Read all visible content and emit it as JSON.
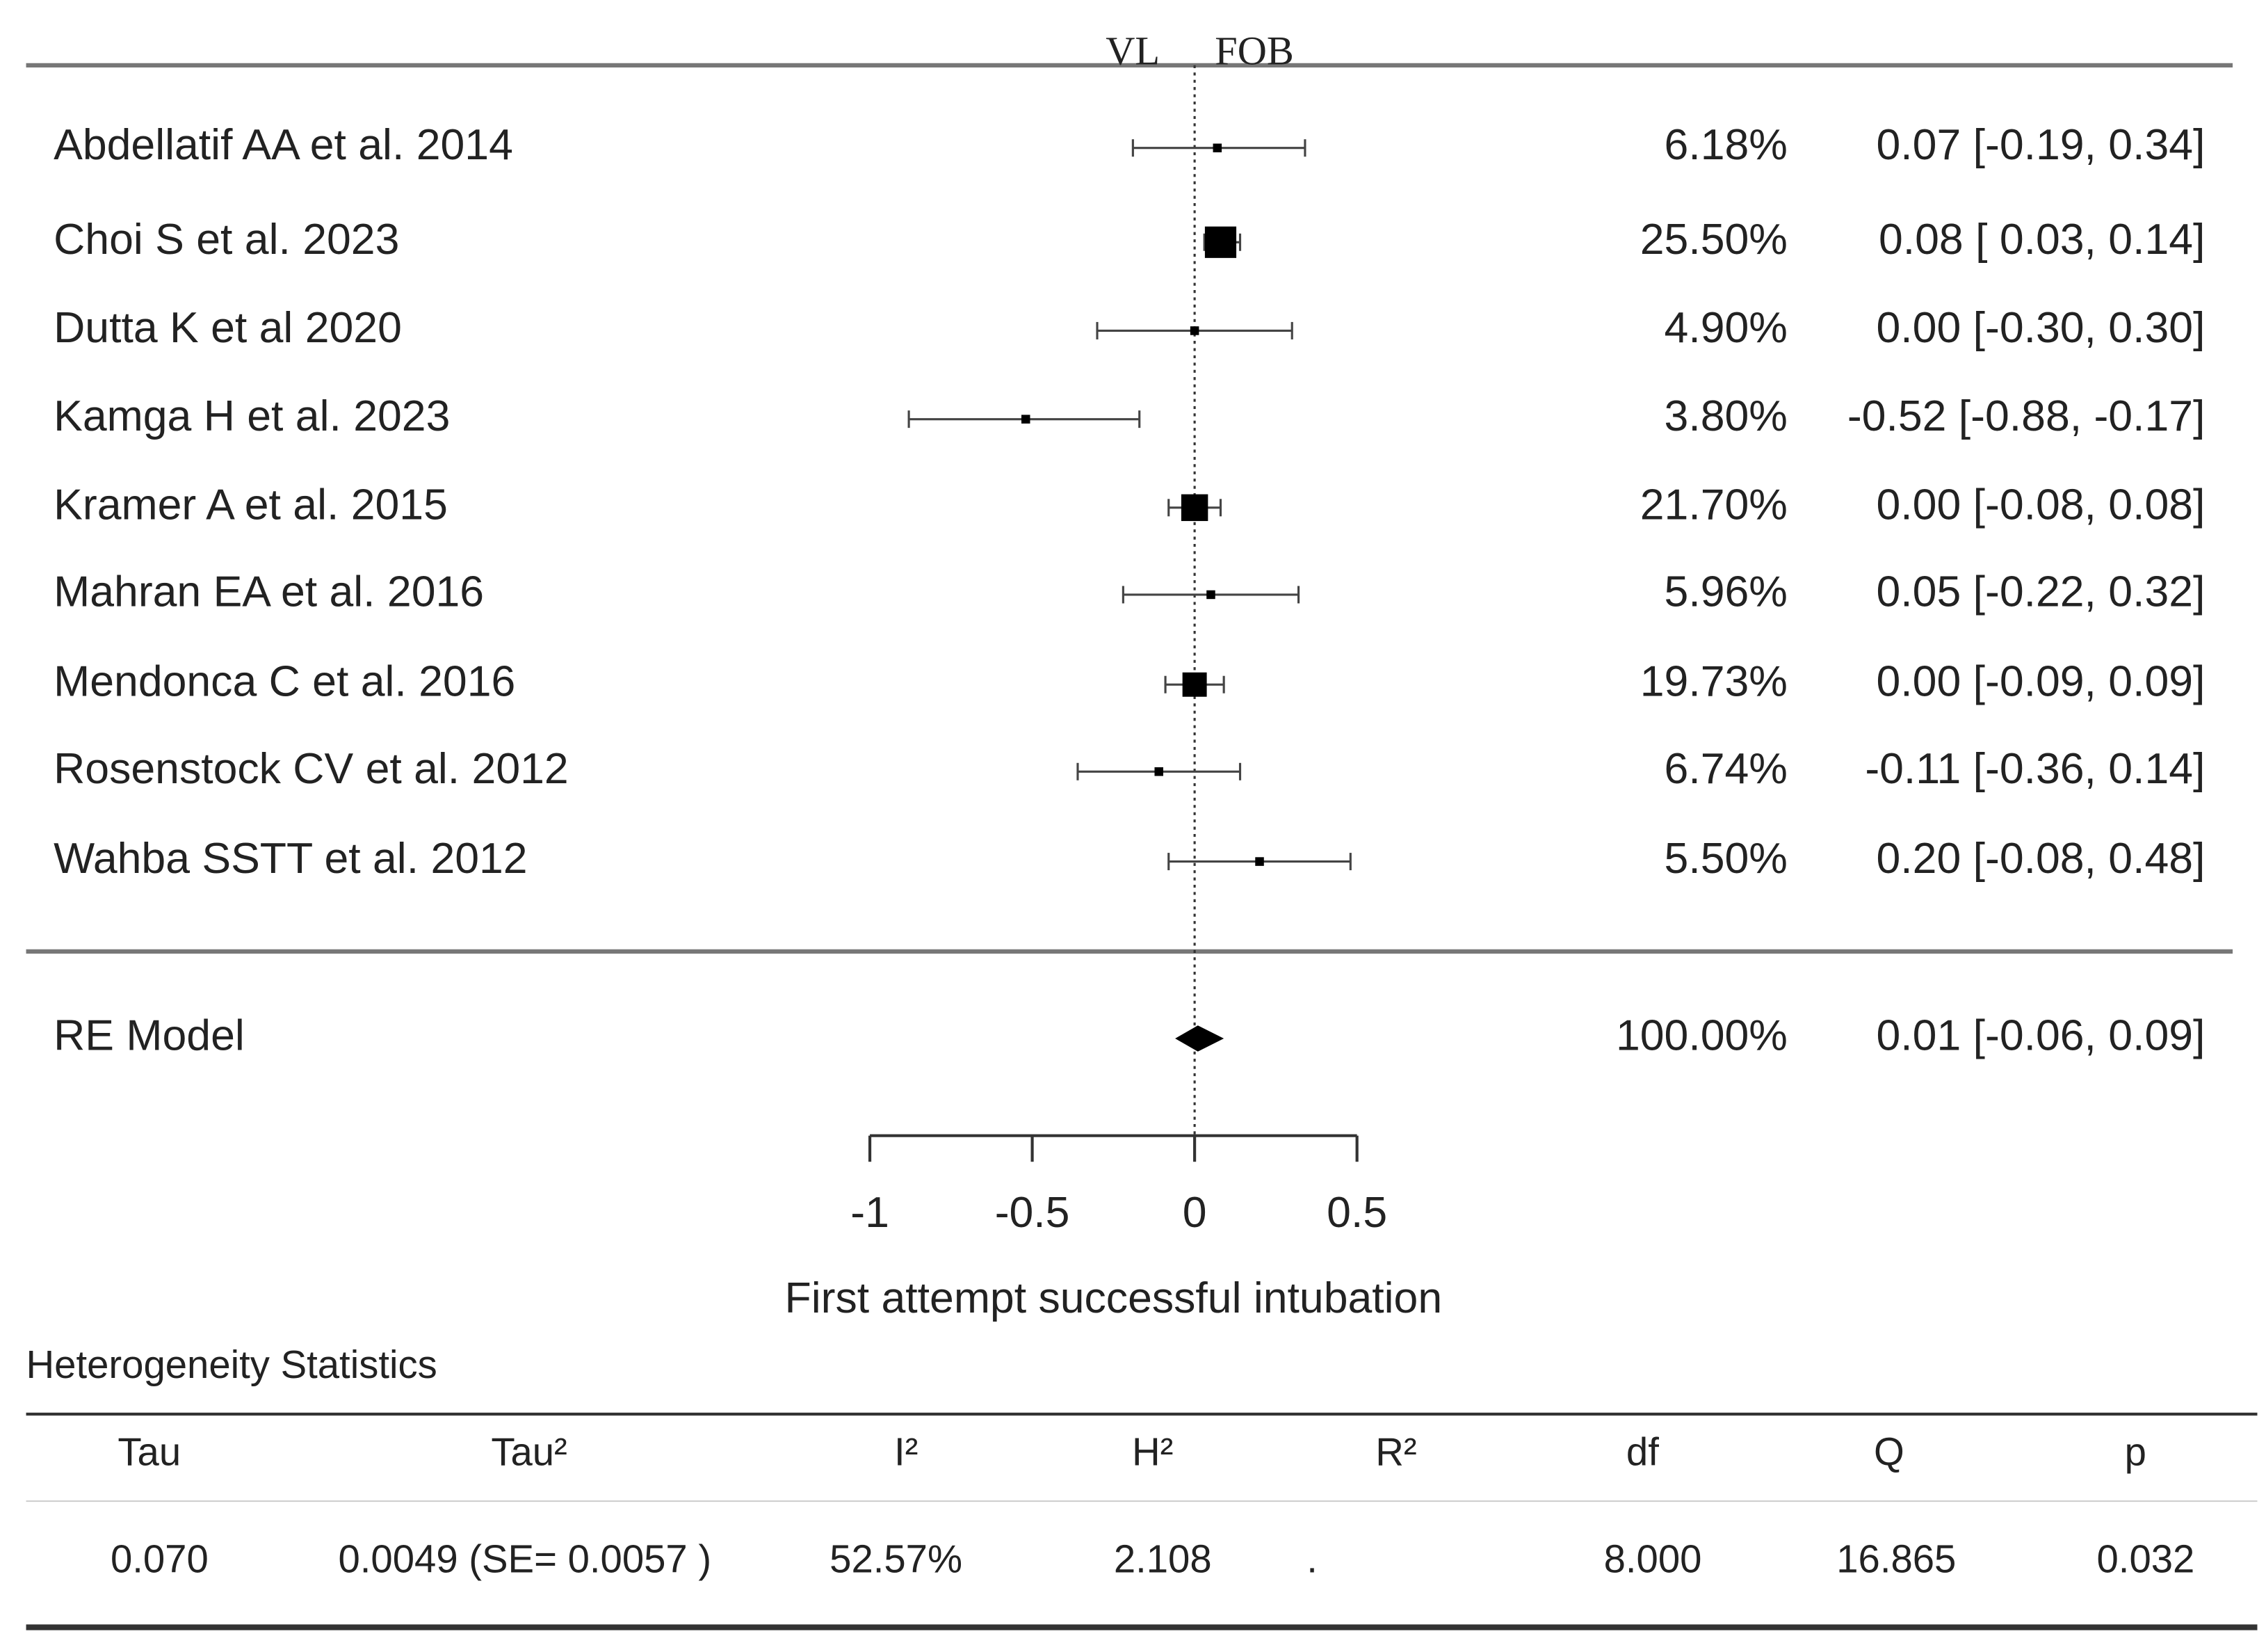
{
  "chart_data": {
    "type": "forest",
    "left_label": "VL",
    "right_label": "FOB",
    "x_label": "First attempt successful intubation",
    "categories": [
      "Abdellatif AA et al. 2014",
      "Choi S et al. 2023",
      "Dutta K et al 2020",
      "Kamga H et al. 2023",
      "Kramer A et al. 2015",
      "Mahran EA et al. 2016",
      "Mendonca C et al. 2016",
      "Rosenstock CV et al. 2012",
      "Wahba SSTT et al. 2012"
    ],
    "values": [
      0.07,
      0.08,
      0.0,
      -0.52,
      0.0,
      0.05,
      0.0,
      -0.11,
      0.2
    ],
    "ci_lower": [
      -0.19,
      0.03,
      -0.3,
      -0.88,
      -0.08,
      -0.22,
      -0.09,
      -0.36,
      -0.08
    ],
    "ci_upper": [
      0.34,
      0.14,
      0.3,
      -0.17,
      0.08,
      0.32,
      0.09,
      0.14,
      0.48
    ],
    "value_labels": [
      "0.07 [-0.19,  0.34]",
      "0.08 [ 0.03,  0.14]",
      "0.00 [-0.30,  0.30]",
      "-0.52 [-0.88, -0.17]",
      "0.00 [-0.08,  0.08]",
      "0.05 [-0.22,  0.32]",
      "0.00 [-0.09,  0.09]",
      "-0.11 [-0.36,  0.14]",
      "0.20 [-0.08,  0.48]"
    ],
    "weights": [
      6.18,
      25.5,
      4.9,
      3.8,
      21.7,
      5.96,
      19.73,
      6.74,
      5.5
    ],
    "weight_labels": [
      "6.18%",
      "25.50%",
      "4.90%",
      "3.80%",
      "21.70%",
      "5.96%",
      "19.73%",
      "6.74%",
      "5.50%"
    ],
    "summary": {
      "label": "RE Model",
      "value": 0.01,
      "ci_lower": -0.06,
      "ci_upper": 0.09,
      "value_label": "0.01 [-0.06,  0.09]",
      "weight": 100.0,
      "weight_label": "100.00%"
    },
    "xlim": [
      -1,
      0.5
    ],
    "xticks": [
      -1,
      -0.5,
      0,
      0.5
    ],
    "color": "#000000"
  },
  "table": {
    "title": "Heterogeneity Statistics",
    "header": [
      "Tau",
      "Tau²",
      "I²",
      "H²",
      "R²",
      "df",
      "Q",
      "p"
    ],
    "rows": [
      [
        "0.070",
        "0.0049 (SE= 0.0057 )",
        "52.57%",
        "2.108",
        ".",
        "8.000",
        "16.865",
        "0.032"
      ]
    ]
  }
}
